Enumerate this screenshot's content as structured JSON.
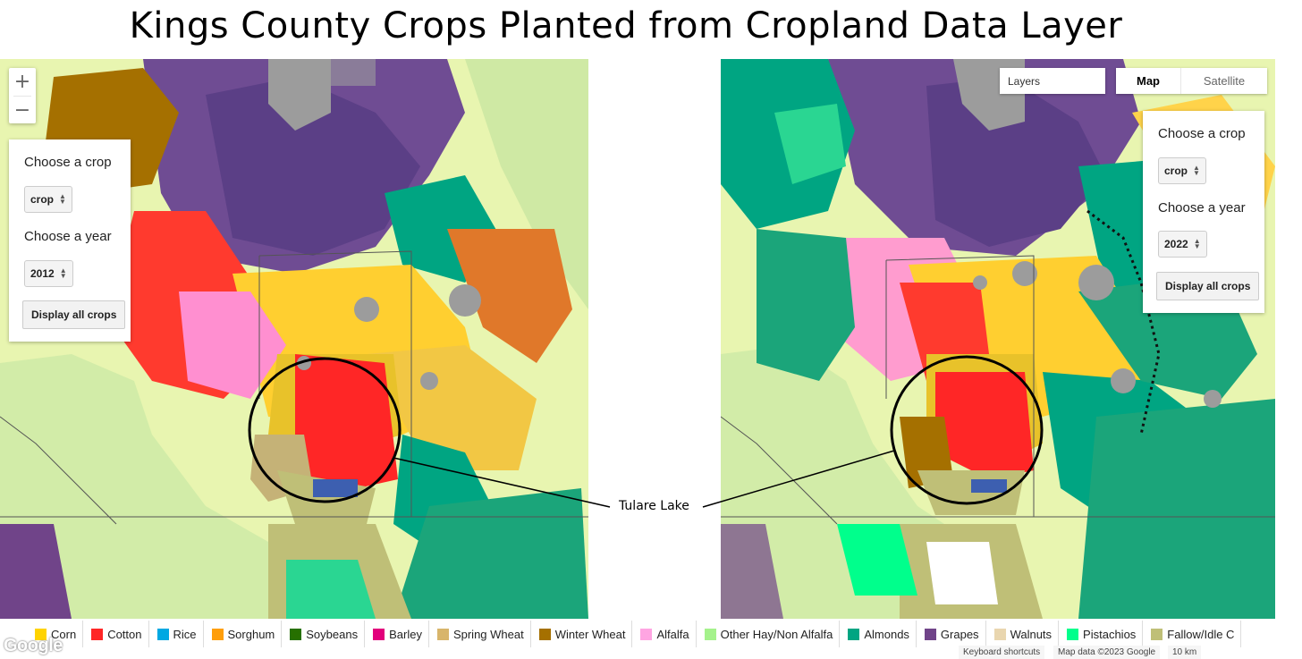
{
  "title": "Kings County Crops Planted from Cropland Data Layer",
  "left_map": {
    "zoom_in": "+",
    "zoom_out": "−",
    "crop_label": "Choose a crop",
    "crop_value": "crop",
    "year_label": "Choose a year",
    "year_value": "2012",
    "display_button": "Display all crops"
  },
  "right_map": {
    "layers_placeholder": "Layers",
    "map_type_map": "Map",
    "map_type_satellite": "Satellite",
    "crop_label": "Choose a crop",
    "crop_value": "crop",
    "year_label": "Choose a year",
    "year_value": "2022",
    "display_button": "Display all crops"
  },
  "callout": "Tulare Lake",
  "legend": [
    {
      "label": "Corn",
      "color": "#ffd300"
    },
    {
      "label": "Cotton",
      "color": "#ff2626"
    },
    {
      "label": "Rice",
      "color": "#00a8e2"
    },
    {
      "label": "Sorghum",
      "color": "#ff9e0a"
    },
    {
      "label": "Soybeans",
      "color": "#267000"
    },
    {
      "label": "Barley",
      "color": "#e2007c"
    },
    {
      "label": "Spring Wheat",
      "color": "#d8b56b"
    },
    {
      "label": "Winter Wheat",
      "color": "#a57000"
    },
    {
      "label": "Alfalfa",
      "color": "#ffa5e2"
    },
    {
      "label": "Other Hay/Non Alfalfa",
      "color": "#a5f28c"
    },
    {
      "label": "Almonds",
      "color": "#00a582"
    },
    {
      "label": "Grapes",
      "color": "#704489"
    },
    {
      "label": "Walnuts",
      "color": "#e9d6af"
    },
    {
      "label": "Pistachios",
      "color": "#00ff8c"
    },
    {
      "label": "Fallow/Idle C",
      "color": "#bfbf77"
    }
  ],
  "google_logo": "Google",
  "attribution": {
    "keyboard": "Keyboard shortcuts",
    "map_data": "Map data ©2023 Google",
    "scale": "10 km"
  },
  "colors": {
    "background_land": "#e8f5b0",
    "grassland": "#c6e6a0",
    "urban": "#9c9c9c"
  }
}
